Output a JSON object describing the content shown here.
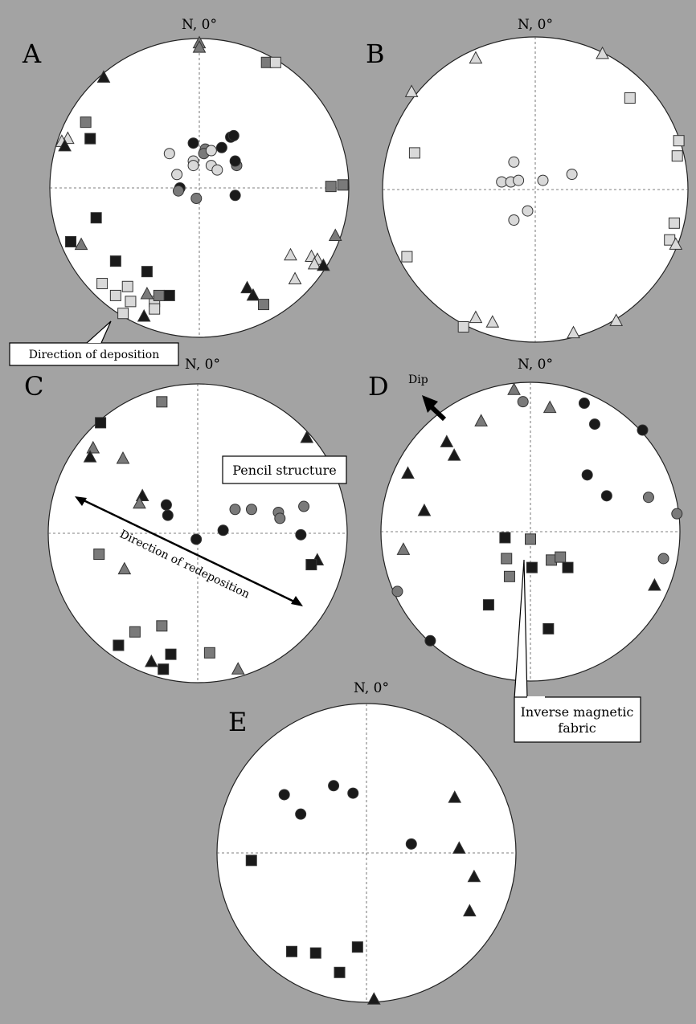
{
  "north_label": "N, 0°",
  "colors": {
    "background": "#a3a3a3",
    "plot_fill": "#ffffff",
    "black": "#1a1a1a",
    "dark_gray": "#7a7a7a",
    "light_gray": "#d9d9d9"
  },
  "symbols": {
    "square": "square-icon",
    "triangle": "triangle-icon",
    "circle": "circle-icon"
  },
  "panels": {
    "A": {
      "letter": "A",
      "annotation": "Direction of deposition",
      "points": [
        [
          "t",
          "dark",
          0.0,
          0.97
        ],
        [
          "t",
          "dark",
          0.0,
          0.94
        ],
        [
          "t",
          "black",
          -0.64,
          0.74
        ],
        [
          "s",
          "dark",
          0.45,
          0.84
        ],
        [
          "s",
          "light",
          0.51,
          0.84
        ],
        [
          "s",
          "dark",
          -0.76,
          0.44
        ],
        [
          "s",
          "black",
          -0.73,
          0.33
        ],
        [
          "t",
          "light",
          -0.88,
          0.33
        ],
        [
          "t",
          "light",
          -0.92,
          0.31
        ],
        [
          "t",
          "black",
          -0.9,
          0.28
        ],
        [
          "c",
          "black",
          -0.04,
          0.3
        ],
        [
          "c",
          "dark",
          0.04,
          0.26
        ],
        [
          "c",
          "light",
          -0.2,
          0.23
        ],
        [
          "c",
          "light",
          -0.04,
          0.18
        ],
        [
          "c",
          "light",
          -0.04,
          0.15
        ],
        [
          "c",
          "dark",
          0.03,
          0.23
        ],
        [
          "c",
          "light",
          0.08,
          0.25
        ],
        [
          "c",
          "black",
          0.15,
          0.27
        ],
        [
          "c",
          "black",
          0.21,
          0.34
        ],
        [
          "c",
          "black",
          0.23,
          0.35
        ],
        [
          "c",
          "light",
          0.08,
          0.15
        ],
        [
          "c",
          "light",
          0.12,
          0.12
        ],
        [
          "c",
          "dark",
          0.25,
          0.15
        ],
        [
          "c",
          "black",
          0.24,
          0.18
        ],
        [
          "c",
          "light",
          -0.15,
          0.09
        ],
        [
          "c",
          "black",
          -0.13,
          0.0
        ],
        [
          "c",
          "dark",
          -0.14,
          -0.02
        ],
        [
          "c",
          "dark",
          -0.02,
          -0.07
        ],
        [
          "c",
          "black",
          0.24,
          -0.05
        ],
        [
          "s",
          "dark",
          0.88,
          0.01
        ],
        [
          "s",
          "dark",
          0.96,
          0.02
        ],
        [
          "s",
          "black",
          -0.69,
          -0.2
        ],
        [
          "s",
          "black",
          -0.86,
          -0.36
        ],
        [
          "t",
          "dark",
          -0.79,
          -0.38
        ],
        [
          "s",
          "black",
          -0.56,
          -0.49
        ],
        [
          "s",
          "black",
          -0.35,
          -0.56
        ],
        [
          "s",
          "light",
          -0.65,
          -0.64
        ],
        [
          "s",
          "light",
          -0.48,
          -0.66
        ],
        [
          "s",
          "light",
          -0.56,
          -0.72
        ],
        [
          "s",
          "light",
          -0.46,
          -0.76
        ],
        [
          "s",
          "light",
          -0.3,
          -0.76
        ],
        [
          "s",
          "dark",
          -0.27,
          -0.72
        ],
        [
          "s",
          "black",
          -0.2,
          -0.72
        ],
        [
          "s",
          "light",
          -0.3,
          -0.81
        ],
        [
          "s",
          "light",
          -0.51,
          -0.84
        ],
        [
          "t",
          "dark",
          -0.35,
          -0.71
        ],
        [
          "t",
          "black",
          -0.37,
          -0.86
        ],
        [
          "t",
          "light",
          0.61,
          -0.45
        ],
        [
          "t",
          "light",
          0.75,
          -0.46
        ],
        [
          "t",
          "light",
          0.79,
          -0.48
        ],
        [
          "t",
          "light",
          0.77,
          -0.51
        ],
        [
          "t",
          "light",
          0.64,
          -0.61
        ],
        [
          "t",
          "dark",
          0.91,
          -0.32
        ],
        [
          "t",
          "black",
          0.83,
          -0.52
        ],
        [
          "t",
          "black",
          0.32,
          -0.67
        ],
        [
          "t",
          "black",
          0.36,
          -0.72
        ],
        [
          "s",
          "dark",
          0.43,
          -0.78
        ]
      ]
    },
    "B": {
      "letter": "B",
      "points": [
        [
          "t",
          "light",
          -0.39,
          0.86
        ],
        [
          "t",
          "light",
          0.44,
          0.89
        ],
        [
          "t",
          "light",
          -0.81,
          0.64
        ],
        [
          "s",
          "light",
          0.62,
          0.6
        ],
        [
          "s",
          "light",
          0.94,
          0.32
        ],
        [
          "s",
          "light",
          0.93,
          0.22
        ],
        [
          "s",
          "light",
          -0.79,
          0.24
        ],
        [
          "c",
          "light",
          -0.14,
          0.18
        ],
        [
          "c",
          "light",
          -0.22,
          0.05
        ],
        [
          "c",
          "light",
          -0.16,
          0.05
        ],
        [
          "c",
          "light",
          -0.11,
          0.06
        ],
        [
          "c",
          "light",
          0.05,
          0.06
        ],
        [
          "c",
          "light",
          0.24,
          0.1
        ],
        [
          "c",
          "light",
          -0.05,
          -0.14
        ],
        [
          "c",
          "light",
          -0.14,
          -0.2
        ],
        [
          "s",
          "light",
          0.91,
          -0.22
        ],
        [
          "s",
          "light",
          0.88,
          -0.33
        ],
        [
          "t",
          "light",
          0.92,
          -0.36
        ],
        [
          "s",
          "light",
          -0.84,
          -0.44
        ],
        [
          "t",
          "light",
          -0.39,
          -0.84
        ],
        [
          "t",
          "light",
          -0.28,
          -0.87
        ],
        [
          "s",
          "light",
          -0.47,
          -0.9
        ],
        [
          "t",
          "light",
          0.25,
          -0.94
        ],
        [
          "t",
          "light",
          0.53,
          -0.86
        ]
      ]
    },
    "C": {
      "letter": "C",
      "annotations": [
        "Pencil structure",
        "Direction of redeposition"
      ],
      "points": [
        [
          "s",
          "dark",
          -0.24,
          0.88
        ],
        [
          "s",
          "black",
          -0.65,
          0.74
        ],
        [
          "t",
          "dark",
          -0.7,
          0.57
        ],
        [
          "t",
          "black",
          -0.72,
          0.51
        ],
        [
          "t",
          "dark",
          -0.5,
          0.5
        ],
        [
          "t",
          "black",
          0.73,
          0.64
        ],
        [
          "t",
          "black",
          -0.37,
          0.25
        ],
        [
          "t",
          "dark",
          -0.39,
          0.2
        ],
        [
          "c",
          "black",
          -0.21,
          0.19
        ],
        [
          "c",
          "black",
          -0.2,
          0.12
        ],
        [
          "c",
          "dark",
          0.25,
          0.16
        ],
        [
          "c",
          "dark",
          0.36,
          0.16
        ],
        [
          "c",
          "dark",
          0.54,
          0.14
        ],
        [
          "c",
          "dark",
          0.55,
          0.1
        ],
        [
          "c",
          "dark",
          0.71,
          0.18
        ],
        [
          "c",
          "black",
          0.17,
          0.02
        ],
        [
          "c",
          "black",
          -0.01,
          -0.04
        ],
        [
          "c",
          "black",
          0.69,
          -0.01
        ],
        [
          "s",
          "dark",
          -0.66,
          -0.14
        ],
        [
          "t",
          "dark",
          -0.49,
          -0.24
        ],
        [
          "t",
          "black",
          0.8,
          -0.18
        ],
        [
          "s",
          "black",
          0.76,
          -0.21
        ],
        [
          "s",
          "dark",
          -0.24,
          -0.62
        ],
        [
          "s",
          "dark",
          -0.42,
          -0.66
        ],
        [
          "s",
          "black",
          -0.53,
          -0.75
        ],
        [
          "s",
          "black",
          -0.18,
          -0.81
        ],
        [
          "t",
          "black",
          -0.31,
          -0.86
        ],
        [
          "s",
          "black",
          -0.23,
          -0.91
        ],
        [
          "s",
          "dark",
          0.08,
          -0.8
        ],
        [
          "t",
          "dark",
          0.27,
          -0.91
        ]
      ]
    },
    "D": {
      "letter": "D",
      "dip_label": "Dip",
      "annotation": "Inverse magnetic fabric",
      "points": [
        [
          "t",
          "dark",
          -0.11,
          0.95
        ],
        [
          "c",
          "dark",
          -0.05,
          0.87
        ],
        [
          "t",
          "dark",
          0.13,
          0.83
        ],
        [
          "t",
          "dark",
          -0.33,
          0.74
        ],
        [
          "t",
          "black",
          -0.56,
          0.6
        ],
        [
          "t",
          "black",
          -0.51,
          0.51
        ],
        [
          "t",
          "black",
          -0.82,
          0.39
        ],
        [
          "t",
          "black",
          -0.71,
          0.14
        ],
        [
          "c",
          "black",
          0.36,
          0.86
        ],
        [
          "c",
          "black",
          0.43,
          0.72
        ],
        [
          "c",
          "black",
          0.75,
          0.68
        ],
        [
          "c",
          "black",
          0.38,
          0.38
        ],
        [
          "c",
          "black",
          0.51,
          0.24
        ],
        [
          "c",
          "dark",
          0.79,
          0.23
        ],
        [
          "c",
          "dark",
          0.98,
          0.12
        ],
        [
          "s",
          "black",
          -0.17,
          -0.04
        ],
        [
          "s",
          "dark",
          0.0,
          -0.05
        ],
        [
          "s",
          "dark",
          -0.16,
          -0.18
        ],
        [
          "s",
          "black",
          0.01,
          -0.24
        ],
        [
          "s",
          "dark",
          0.14,
          -0.19
        ],
        [
          "s",
          "dark",
          0.2,
          -0.17
        ],
        [
          "s",
          "black",
          0.25,
          -0.24
        ],
        [
          "s",
          "dark",
          -0.14,
          -0.3
        ],
        [
          "s",
          "black",
          -0.28,
          -0.49
        ],
        [
          "s",
          "black",
          0.12,
          -0.65
        ],
        [
          "t",
          "dark",
          -0.85,
          -0.12
        ],
        [
          "c",
          "dark",
          0.89,
          -0.18
        ],
        [
          "t",
          "black",
          0.83,
          -0.36
        ],
        [
          "c",
          "dark",
          -0.89,
          -0.4
        ],
        [
          "c",
          "black",
          -0.67,
          -0.73
        ]
      ]
    },
    "E": {
      "letter": "E",
      "points": [
        [
          "c",
          "black",
          -0.55,
          0.39
        ],
        [
          "c",
          "black",
          -0.44,
          0.26
        ],
        [
          "c",
          "black",
          -0.22,
          0.45
        ],
        [
          "c",
          "black",
          -0.09,
          0.4
        ],
        [
          "c",
          "black",
          0.3,
          0.06
        ],
        [
          "t",
          "black",
          0.59,
          0.37
        ],
        [
          "t",
          "black",
          0.62,
          0.03
        ],
        [
          "t",
          "black",
          0.72,
          -0.16
        ],
        [
          "t",
          "black",
          0.69,
          -0.39
        ],
        [
          "s",
          "black",
          -0.77,
          -0.05
        ],
        [
          "s",
          "black",
          -0.5,
          -0.66
        ],
        [
          "s",
          "black",
          -0.34,
          -0.67
        ],
        [
          "s",
          "black",
          -0.06,
          -0.63
        ],
        [
          "s",
          "black",
          -0.18,
          -0.8
        ],
        [
          "t",
          "black",
          0.05,
          -0.98
        ]
      ]
    }
  }
}
